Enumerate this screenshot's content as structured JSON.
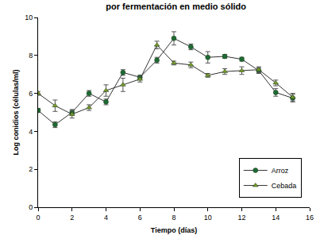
{
  "chart_data": {
    "type": "line",
    "title": "por fermentación en medio sólido",
    "x_label": "Tiempo (días)",
    "y_label": "Log conidios (células/ml)",
    "x": [
      0,
      1,
      2,
      3,
      4,
      5,
      6,
      7,
      8,
      9,
      10,
      11,
      12,
      13,
      14,
      15
    ],
    "series": [
      {
        "name": "Arroz",
        "color": "#1e6b34",
        "marker": "circle",
        "values": [
          5.1,
          4.35,
          5.0,
          6.0,
          5.55,
          7.1,
          6.85,
          7.75,
          8.9,
          8.45,
          7.9,
          7.95,
          7.8,
          7.2,
          6.05,
          5.75
        ],
        "errors": [
          0.1,
          0.15,
          0.15,
          0.15,
          0.15,
          0.15,
          0.1,
          0.15,
          0.35,
          0.15,
          0.3,
          0.1,
          0.1,
          0.15,
          0.2,
          0.2
        ]
      },
      {
        "name": "Cebada",
        "color": "#7a9a2a",
        "marker": "triangle-up",
        "values": [
          6.0,
          5.35,
          4.9,
          5.25,
          6.15,
          6.45,
          6.75,
          8.55,
          7.6,
          7.5,
          6.95,
          7.15,
          7.2,
          7.25,
          6.55,
          5.8
        ],
        "errors": [
          0.1,
          0.3,
          0.2,
          0.15,
          0.3,
          0.35,
          0.15,
          0.2,
          0.1,
          0.15,
          0.1,
          0.15,
          0.2,
          0.15,
          0.15,
          0.2
        ]
      }
    ],
    "xlim": [
      0,
      16
    ],
    "xticks": [
      0,
      2,
      4,
      6,
      8,
      10,
      12,
      14,
      16
    ],
    "ylim": [
      0,
      10
    ],
    "yticks": [
      0,
      2,
      4,
      6,
      8,
      10
    ],
    "grid": false,
    "legend": "bottom right"
  }
}
